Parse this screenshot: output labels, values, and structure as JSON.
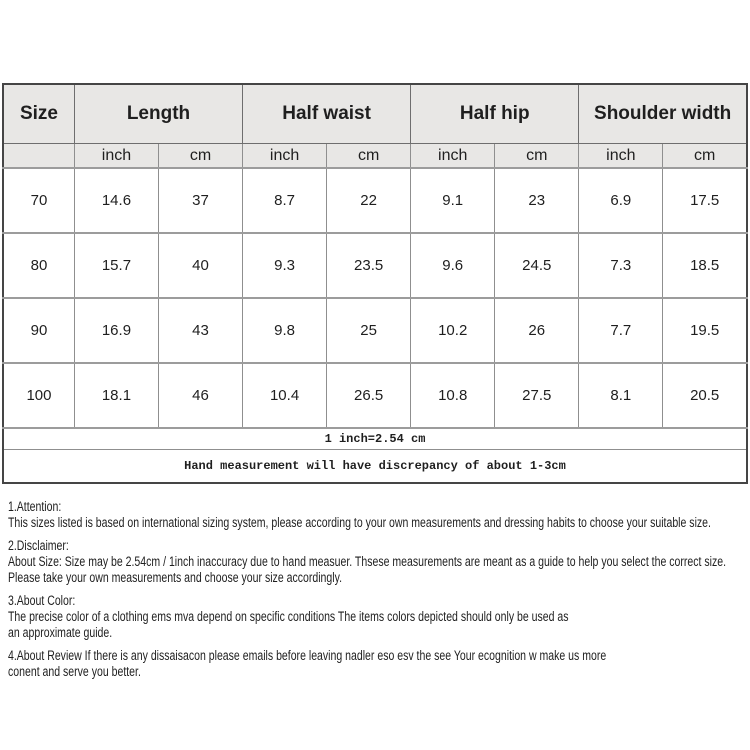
{
  "table": {
    "columns": [
      {
        "label": "Size"
      },
      {
        "label": "Length"
      },
      {
        "label": "Half waist"
      },
      {
        "label": "Half hip"
      },
      {
        "label": "Shoulder width"
      }
    ],
    "unit_headers": [
      "inch",
      "cm",
      "inch",
      "cm",
      "inch",
      "cm",
      "inch",
      "cm"
    ],
    "rows": [
      {
        "size": "70",
        "values": [
          "14.6",
          "37",
          "8.7",
          "22",
          "9.1",
          "23",
          "6.9",
          "17.5"
        ]
      },
      {
        "size": "80",
        "values": [
          "15.7",
          "40",
          "9.3",
          "23.5",
          "9.6",
          "24.5",
          "7.3",
          "18.5"
        ]
      },
      {
        "size": "90",
        "values": [
          "16.9",
          "43",
          "9.8",
          "25",
          "10.2",
          "26",
          "7.7",
          "19.5"
        ]
      },
      {
        "size": "100",
        "values": [
          "18.1",
          "46",
          "10.4",
          "26.5",
          "10.8",
          "27.5",
          "8.1",
          "20.5"
        ]
      }
    ],
    "footnotes": [
      "1 inch=2.54 cm",
      "Hand measurement will have discrepancy of about 1-3cm"
    ]
  },
  "notes": {
    "sections": [
      {
        "heading": "1.Attention:",
        "lines": [
          "This sizes listed is based on international sizing system, please according to your own measurements and dressing habits to choose your suitable size."
        ]
      },
      {
        "heading": "2.Disclaimer:",
        "lines": [
          "About Size: Size may be 2.54cm / 1inch inaccuracy due to hand measuer. Thsese measurements are meant as a guide to help you select the correct size.",
          "Please take your own measurements and choose your size accordingly."
        ]
      },
      {
        "heading": "3.About Color:",
        "lines": [
          "The precise color of a clothing ems mva depend on specific conditions The items colors depicted should only be used as",
          "an approximate guide."
        ]
      },
      {
        "heading": "",
        "lines": [
          "4.About Review If there is any dissaisacon please emails before leaving nadler eso esv the see Your ecognition w make us more",
          "conent and serve you better."
        ]
      }
    ]
  },
  "colors": {
    "header_bg": "#e8e7e5",
    "border_outer": "#454545",
    "border_inner": "#8f8f8f",
    "text": "#1f1f1f"
  }
}
